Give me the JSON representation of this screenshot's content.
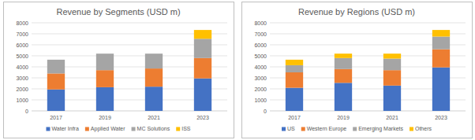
{
  "chart_data": [
    {
      "type": "bar",
      "title": "Revenue by Segments (USD m)",
      "stacked": true,
      "grid": true,
      "legend": "bottom",
      "categories": [
        "2017",
        "2019",
        "2021",
        "2023"
      ],
      "ylim": [
        0,
        8000
      ],
      "yticks": [
        0,
        1000,
        2000,
        3000,
        4000,
        5000,
        6000,
        7000,
        8000
      ],
      "series": [
        {
          "name": "Water Infra",
          "color": "#4472c4",
          "values": [
            1950,
            2150,
            2200,
            2950
          ]
        },
        {
          "name": "Applied Water",
          "color": "#ed7d31",
          "values": [
            1450,
            1550,
            1650,
            1850
          ]
        },
        {
          "name": "MC Solutions",
          "color": "#a5a5a5",
          "values": [
            1250,
            1500,
            1350,
            1750
          ]
        },
        {
          "name": "ISS",
          "color": "#ffc000",
          "values": [
            0,
            0,
            0,
            800
          ]
        }
      ]
    },
    {
      "type": "bar",
      "title": "Revenue by Regions (USD m)",
      "stacked": true,
      "grid": true,
      "legend": "bottom",
      "categories": [
        "2017",
        "2019",
        "2021",
        "2023"
      ],
      "ylim": [
        0,
        8000
      ],
      "yticks": [
        0,
        1000,
        2000,
        3000,
        4000,
        5000,
        6000,
        7000,
        8000
      ],
      "series": [
        {
          "name": "US",
          "color": "#4472c4",
          "values": [
            2100,
            2550,
            2300,
            3950
          ]
        },
        {
          "name": "Western Europe",
          "color": "#ed7d31",
          "values": [
            1400,
            1250,
            1400,
            1650
          ]
        },
        {
          "name": "Emerging Markets",
          "color": "#a5a5a5",
          "values": [
            650,
            1000,
            1050,
            1150
          ]
        },
        {
          "name": "Others",
          "color": "#ffc000",
          "values": [
            500,
            400,
            450,
            600
          ]
        }
      ]
    }
  ]
}
